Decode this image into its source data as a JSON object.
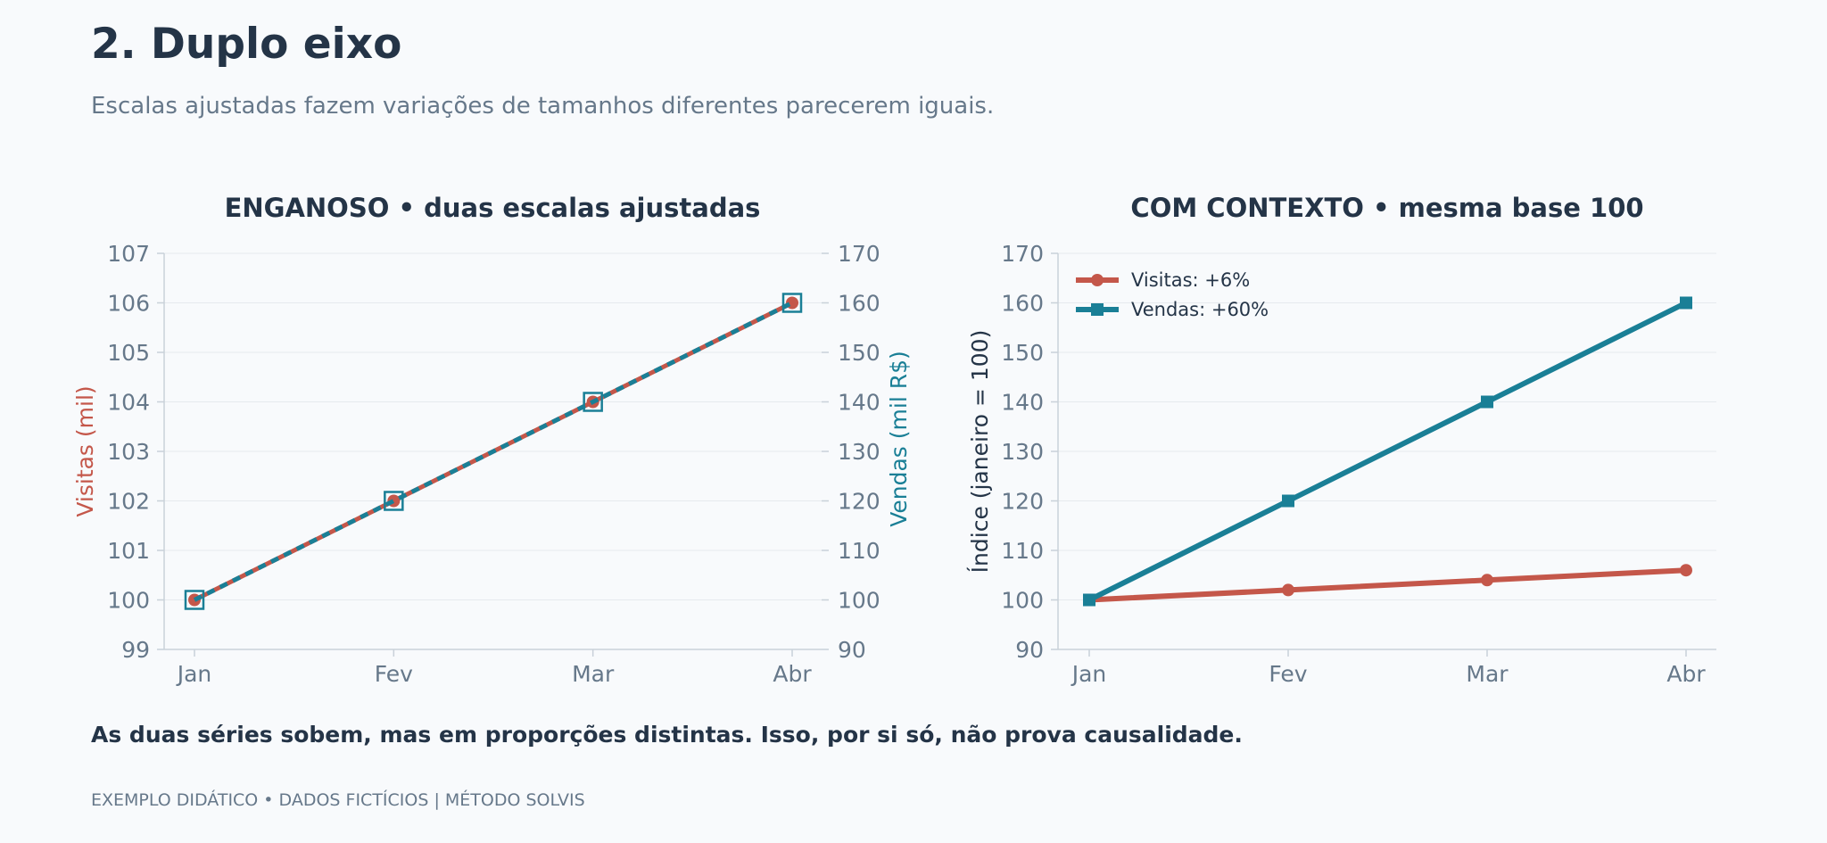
{
  "header": {
    "title": "2. Duplo eixo",
    "subtitle": "Escalas ajustadas fazem variações de tamanhos diferentes parecerem iguais."
  },
  "conclusion": "As duas séries sobem, mas em proporções distintas. Isso, por si só, não prova causalidade.",
  "footer": "EXEMPLO DIDÁTICO • DADOS FICTÍCIOS | MÉTODO SOLVIS",
  "colors": {
    "visitas": "#c4574a",
    "vendas": "#1a7f96",
    "text_dark": "#243447",
    "text_muted": "#66788a",
    "grid": "#e6eaee",
    "axis": "#c9d1d9"
  },
  "chart_data": [
    {
      "type": "line",
      "title": "ENGANOSO • duas escalas ajustadas",
      "categories": [
        "Jan",
        "Fev",
        "Mar",
        "Abr"
      ],
      "ylabel": "Visitas (mil)",
      "ylabel_right": "Vendas (mil R$)",
      "ylim": [
        99,
        107
      ],
      "ylim_right": [
        90,
        170
      ],
      "yticks": [
        "99",
        "100",
        "101",
        "102",
        "103",
        "104",
        "105",
        "106",
        "107"
      ],
      "yticks_right": [
        "90",
        "100",
        "110",
        "120",
        "130",
        "140",
        "150",
        "160",
        "170"
      ],
      "grid": true,
      "series": [
        {
          "name": "Visitas",
          "axis": "left",
          "values": [
            100,
            102,
            104,
            106
          ],
          "color": "#c4574a",
          "marker": "circle"
        },
        {
          "name": "Vendas",
          "axis": "right",
          "values": [
            100,
            120,
            140,
            160
          ],
          "color": "#1a7f96",
          "marker": "square"
        }
      ]
    },
    {
      "type": "line",
      "title": "COM CONTEXTO • mesma base 100",
      "categories": [
        "Jan",
        "Fev",
        "Mar",
        "Abr"
      ],
      "ylabel": "Índice (janeiro = 100)",
      "ylim": [
        90,
        170
      ],
      "yticks": [
        "90",
        "100",
        "110",
        "120",
        "130",
        "140",
        "150",
        "160",
        "170"
      ],
      "grid": true,
      "legend": "top-left",
      "series": [
        {
          "name": "Visitas: +6%",
          "values": [
            100,
            102,
            104,
            106
          ],
          "color": "#c4574a",
          "marker": "circle"
        },
        {
          "name": "Vendas: +60%",
          "values": [
            100,
            120,
            140,
            160
          ],
          "color": "#1a7f96",
          "marker": "square"
        }
      ]
    }
  ]
}
